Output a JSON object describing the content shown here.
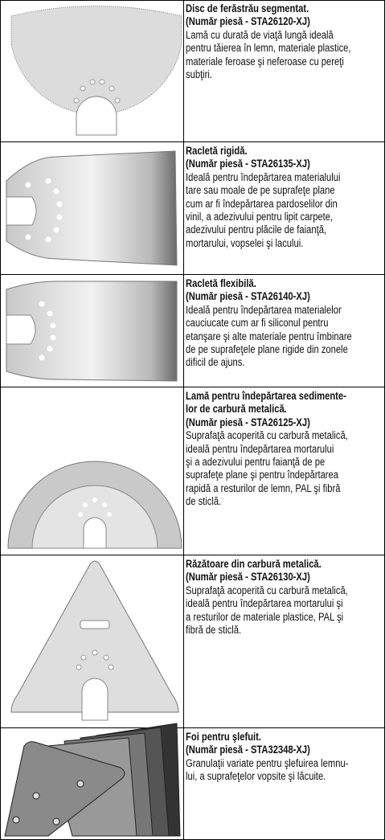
{
  "rows": [
    {
      "heading": [
        "Disc de ferăstrău segmentat.",
        "(Număr piesă - STA26120-XJ)"
      ],
      "text": [
        "Lamă cu durată de viaţă lungă ideală",
        "pentru tăierea în lemn, materiale plastice,",
        "materiale feroase şi neferoase cu pereţi",
        "subţiri."
      ]
    },
    {
      "heading": [
        "Racletă rigidă.",
        "(Număr piesă - STA26135-XJ)"
      ],
      "text": [
        "Ideală pentru îndepărtarea materialului",
        "tare sau moale de pe suprafeţe plane",
        "cum ar fi îndepărtarea pardoselilor din",
        "vinil, a adezivului pentru lipit carpete,",
        "adezivului pentru plăcile de faianţă,",
        "mortarului, vopselei şi lacului."
      ]
    },
    {
      "heading": [
        "Racletă flexibilă.",
        "(Număr piesă - STA26140-XJ)"
      ],
      "text": [
        "Ideală pentru îndepărtarea materialelor",
        "cauciucate cum ar fi siliconul pentru",
        "etanşare şi alte materiale pentru îmbinare",
        "de pe suprafeţele plane rigide din zonele",
        "dificil de ajuns."
      ]
    },
    {
      "heading": [
        "Lamă pentru îndepărtarea sedimente-",
        "lor de carbură metalică.",
        "(Număr piesă - STA26125-XJ)"
      ],
      "text": [
        "Suprafaţă acoperită cu carbură metalică,",
        "ideală pentru îndepărtarea mortarului",
        "şi a adezivului pentru faianţă de pe",
        "suprafeţe plane şi pentru îndepărtarea",
        "rapidă a resturilor de lemn, PAL şi fibră",
        "de sticlă."
      ]
    },
    {
      "heading": [
        "Răzătoare din carbură metalică.",
        "(Număr piesă - STA26130-XJ)"
      ],
      "text": [
        "Suprafaţă acoperită cu carbură metalică,",
        "ideală pentru îndepărtarea mortarului şi",
        "a resturilor de materiale plastice, PAL şi",
        "fibră de sticlă."
      ]
    },
    {
      "heading": [
        "Foi pentru şlefuit.",
        "(Număr piesă - STA32348-XJ)"
      ],
      "text": [
        "Granulaţii variate pentru şlefuirea lemnu-",
        "lui, a suprafeţelor vopsite şi lăcuite."
      ]
    }
  ]
}
